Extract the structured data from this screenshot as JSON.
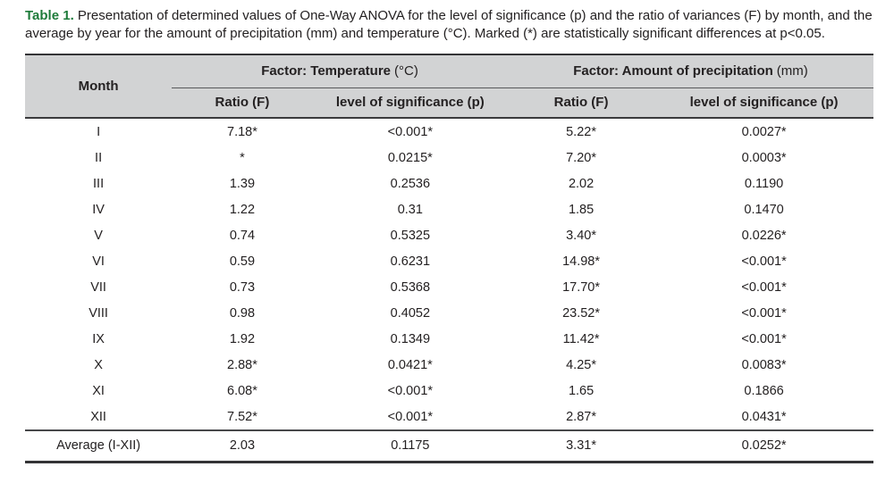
{
  "caption": {
    "label": "Table 1.",
    "text": "Presentation of determined values of One-Way ANOVA for the level of significance (p) and the ratio of variances (F) by month, and the average by year for the amount of precipitation (mm) and temperature (°C). Marked (*) are statistically significant differences at p<0.05."
  },
  "table": {
    "month_header": "Month",
    "group_headers": [
      {
        "label": "Factor: Temperature",
        "unit": "(°C)"
      },
      {
        "label": "Factor: Amount of precipitation",
        "unit": "(mm)"
      }
    ],
    "sub_headers": [
      "Ratio (F)",
      "level of significance (p)",
      "Ratio (F)",
      "level of significance (p)"
    ],
    "rows": [
      {
        "month": "I",
        "t_f": "7.18*",
        "t_p": "<0.001*",
        "p_f": "5.22*",
        "p_p": "0.0027*"
      },
      {
        "month": "II",
        "t_f": "*",
        "t_p": "0.0215*",
        "p_f": "7.20*",
        "p_p": "0.0003*"
      },
      {
        "month": "III",
        "t_f": "1.39",
        "t_p": "0.2536",
        "p_f": "2.02",
        "p_p": "0.1190"
      },
      {
        "month": "IV",
        "t_f": "1.22",
        "t_p": "0.31",
        "p_f": "1.85",
        "p_p": "0.1470"
      },
      {
        "month": "V",
        "t_f": "0.74",
        "t_p": "0.5325",
        "p_f": "3.40*",
        "p_p": "0.0226*"
      },
      {
        "month": "VI",
        "t_f": "0.59",
        "t_p": "0.6231",
        "p_f": "14.98*",
        "p_p": "<0.001*"
      },
      {
        "month": "VII",
        "t_f": "0.73",
        "t_p": "0.5368",
        "p_f": "17.70*",
        "p_p": "<0.001*"
      },
      {
        "month": "VIII",
        "t_f": "0.98",
        "t_p": "0.4052",
        "p_f": "23.52*",
        "p_p": "<0.001*"
      },
      {
        "month": "IX",
        "t_f": "1.92",
        "t_p": "0.1349",
        "p_f": "11.42*",
        "p_p": "<0.001*"
      },
      {
        "month": "X",
        "t_f": "2.88*",
        "t_p": "0.0421*",
        "p_f": "4.25*",
        "p_p": "0.0083*"
      },
      {
        "month": "XI",
        "t_f": "6.08*",
        "t_p": "<0.001*",
        "p_f": "1.65",
        "p_p": "0.1866"
      },
      {
        "month": "XII",
        "t_f": "7.52*",
        "t_p": "<0.001*",
        "p_f": "2.87*",
        "p_p": "0.0431*"
      }
    ],
    "average": {
      "month": "Average (I-XII)",
      "t_f": "2.03",
      "t_p": "0.1175",
      "p_f": "3.31*",
      "p_p": "0.0252*"
    }
  },
  "colors": {
    "caption_label_green": "#1e7b3a",
    "header_bg": "#d2d3d4",
    "text": "#242122",
    "border_dark": "#343436"
  }
}
